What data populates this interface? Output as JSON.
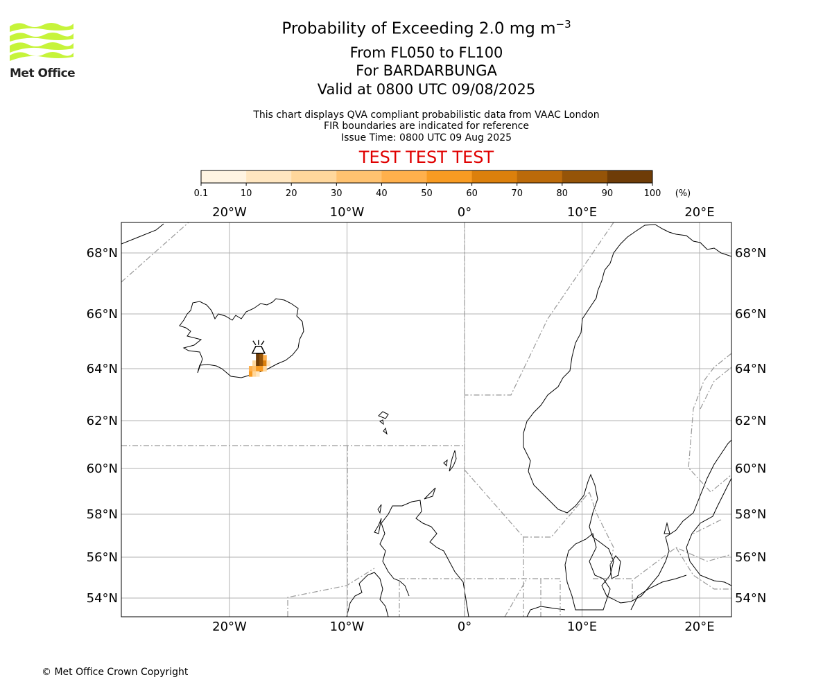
{
  "logo": {
    "text": "Met Office",
    "color": "#c6f43a"
  },
  "header": {
    "title": "Probability of Exceeding 2.0 mg m",
    "title_exponent": "−3",
    "line2": "From FL050 to FL100",
    "line3": "For BARDARBUNGA",
    "line4": "Valid at 0800 UTC 09/08/2025",
    "note1": "This chart displays QVA compliant probabilistic data from VAAC London",
    "note2": "FIR boundaries are indicated for reference",
    "note3": "Issue Time: 0800 UTC 09 Aug 2025",
    "test_banner": "TEST TEST TEST"
  },
  "colorbar": {
    "ticks": [
      "0.1",
      "10",
      "20",
      "30",
      "40",
      "50",
      "60",
      "70",
      "80",
      "90",
      "100"
    ],
    "unit": "(%)",
    "colors": [
      "#fff4e2",
      "#ffe6c0",
      "#ffd79c",
      "#ffc270",
      "#ffb04c",
      "#f89b22",
      "#dc800c",
      "#bb6a0a",
      "#955408",
      "#6e3c07"
    ]
  },
  "map": {
    "lon_labels": [
      "20°W",
      "10°W",
      "0°",
      "10°E",
      "20°E"
    ],
    "lon_values": [
      -20,
      -10,
      0,
      10,
      20
    ],
    "lat_labels": [
      "68°N",
      "66°N",
      "64°N",
      "62°N",
      "60°N",
      "58°N",
      "56°N",
      "54°N"
    ],
    "lat_values": [
      68,
      66,
      64,
      62,
      60,
      58,
      56,
      54
    ],
    "volcano": {
      "name": "BARDARBUNGA",
      "icon": "volcano-icon",
      "lat": 64.64,
      "lon": -17.53
    },
    "probability_cells": [
      {
        "lat": 64.6,
        "lon": -17.6,
        "p": 95
      },
      {
        "lat": 64.6,
        "lon": -17.3,
        "p": 85
      },
      {
        "lat": 64.4,
        "lon": -17.6,
        "p": 92
      },
      {
        "lat": 64.4,
        "lon": -17.3,
        "p": 88
      },
      {
        "lat": 64.4,
        "lon": -17.0,
        "p": 45
      },
      {
        "lat": 64.2,
        "lon": -17.9,
        "p": 20
      },
      {
        "lat": 64.2,
        "lon": -17.6,
        "p": 90
      },
      {
        "lat": 64.2,
        "lon": -17.3,
        "p": 85
      },
      {
        "lat": 64.2,
        "lon": -17.0,
        "p": 60
      },
      {
        "lat": 64.2,
        "lon": -16.7,
        "p": 15
      },
      {
        "lat": 64.0,
        "lon": -18.2,
        "p": 40
      },
      {
        "lat": 64.0,
        "lon": -17.9,
        "p": 35
      },
      {
        "lat": 64.0,
        "lon": -17.6,
        "p": 55
      },
      {
        "lat": 64.0,
        "lon": -17.3,
        "p": 50
      },
      {
        "lat": 64.0,
        "lon": -17.0,
        "p": 25
      },
      {
        "lat": 63.8,
        "lon": -18.2,
        "p": 55
      },
      {
        "lat": 63.8,
        "lon": -17.9,
        "p": 20
      },
      {
        "lat": 63.8,
        "lon": -17.6,
        "p": 15
      }
    ]
  },
  "footer": {
    "copyright": "© Met Office Crown Copyright"
  }
}
